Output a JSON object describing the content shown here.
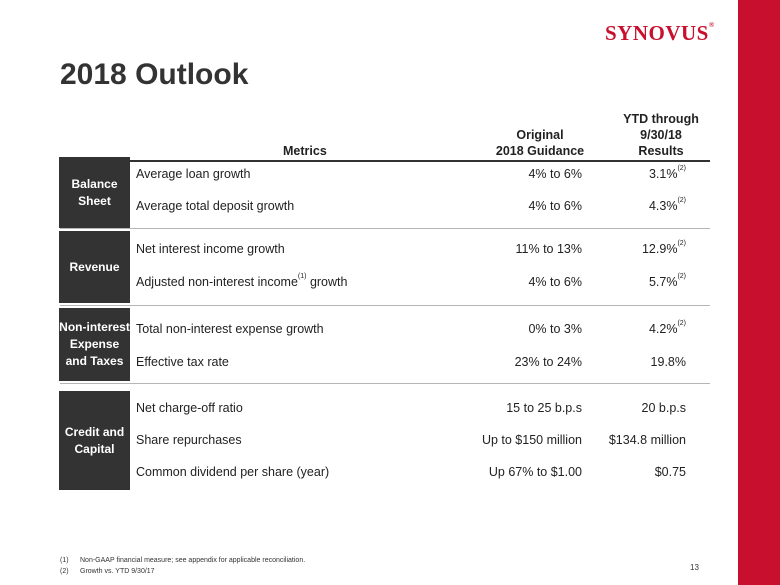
{
  "brand": {
    "logo_text": "SYNOVUS",
    "logo_mark": "®",
    "accent_color": "#c8102e"
  },
  "title": "2018 Outlook",
  "headers": {
    "metrics": "Metrics",
    "original_line1": "Original",
    "original_line2": "2018 Guidance",
    "ytd_line1": "YTD through",
    "ytd_line2": "9/30/18",
    "ytd_line3": "Results"
  },
  "categories": [
    {
      "label_line1": "Balance",
      "label_line2": "Sheet"
    },
    {
      "label_line1": "Revenue"
    },
    {
      "label_line1": "Non-interest",
      "label_line2": "Expense",
      "label_line3": "and Taxes"
    },
    {
      "label_line1": "Credit and",
      "label_line2": "Capital"
    }
  ],
  "rows": [
    {
      "metric": "Average loan growth",
      "original": "4% to 6%",
      "ytd": "3.1%",
      "ytd_note": "(2)"
    },
    {
      "metric": "Average total deposit growth",
      "original": "4% to 6%",
      "ytd": "4.3%",
      "ytd_note": "(2)"
    },
    {
      "metric": "Net interest income growth",
      "original": "11% to 13%",
      "ytd": "12.9%",
      "ytd_note": "(2)"
    },
    {
      "metric_pre": "Adjusted non-interest income",
      "metric_note": "(1)",
      "metric_post": " growth",
      "original": "4% to 6%",
      "ytd": "5.7%",
      "ytd_note": "(2)"
    },
    {
      "metric": "Total non-interest expense growth",
      "original": "0% to 3%",
      "ytd": "4.2%",
      "ytd_note": "(2)"
    },
    {
      "metric": "Effective tax rate",
      "original": "23% to 24%",
      "ytd": "19.8%"
    },
    {
      "metric": "Net charge-off ratio",
      "original": "15 to 25 b.p.s",
      "ytd": "20 b.p.s"
    },
    {
      "metric": "Share repurchases",
      "original": "Up to $150 million",
      "ytd": "$134.8 million"
    },
    {
      "metric": "Common dividend per share (year)",
      "original": "Up 67% to $1.00",
      "ytd": "$0.75"
    }
  ],
  "footnotes": [
    {
      "num": "(1)",
      "text": "Non-GAAP financial measure; see appendix for applicable reconciliation."
    },
    {
      "num": "(2)",
      "text": "Growth vs. YTD 9/30/17"
    }
  ],
  "page_number": "13"
}
